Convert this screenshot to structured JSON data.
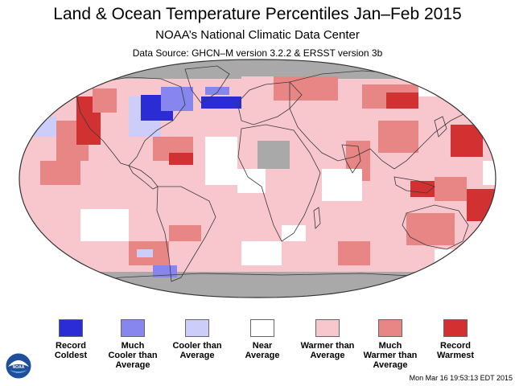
{
  "header": {
    "title": "Land & Ocean Temperature Percentiles Jan–Feb 2015",
    "subtitle": "NOAA’s National Climatic Data Center",
    "source": "Data Source: GHCN–M version 3.2.2 & ERSST version 3b"
  },
  "legend": [
    {
      "label": "Record\nColdest",
      "color": "#2c2cd6"
    },
    {
      "label": "Much\nCooler than\nAverage",
      "color": "#8686ee"
    },
    {
      "label": "Cooler than\nAverage",
      "color": "#cdcdfa"
    },
    {
      "label": "Near\nAverage",
      "color": "#ffffff"
    },
    {
      "label": "Warmer than\nAverage",
      "color": "#f8c6cd"
    },
    {
      "label": "Much\nWarmer than\nAverage",
      "color": "#e88585"
    },
    {
      "label": "Record\nWarmest",
      "color": "#d13131"
    }
  ],
  "colors": {
    "no_data": "#a9a9a9",
    "land_outline": "#3a3a3a",
    "map_border": "#333333"
  },
  "map": {
    "projection": "Robinson",
    "description_layers": [
      "anomaly-percentile-grid",
      "continent-outlines",
      "country-borders"
    ]
  },
  "footer": {
    "timestamp": "Mon Mar 16 19:53:13 EDT 2015",
    "logo": "noaa-logo"
  }
}
